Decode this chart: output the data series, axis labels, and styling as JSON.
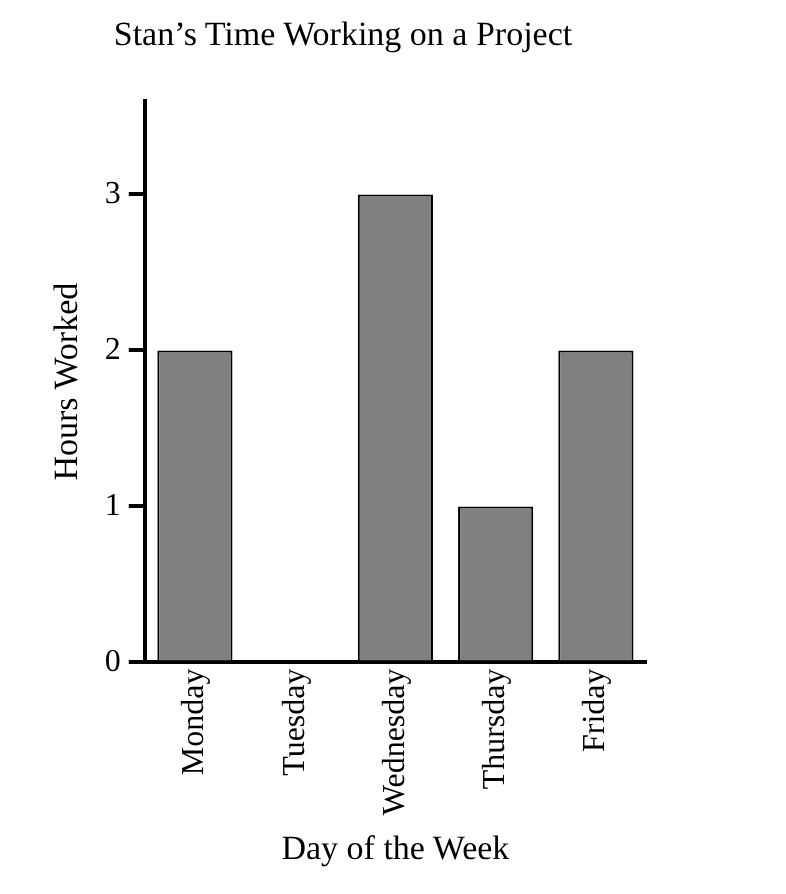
{
  "chart_data": {
    "type": "bar",
    "title": "Stan’s Time Working on a Project",
    "xlabel": "Day of the Week",
    "ylabel": "Hours Worked",
    "categories": [
      "Monday",
      "Tuesday",
      "Wednesday",
      "Thursday",
      "Friday"
    ],
    "values": [
      2,
      0,
      3,
      1,
      2
    ],
    "color": "#808080",
    "ylim": [
      0,
      3.6
    ],
    "yticks": [
      0,
      1,
      2,
      3
    ],
    "grid": false,
    "legend": false
  }
}
